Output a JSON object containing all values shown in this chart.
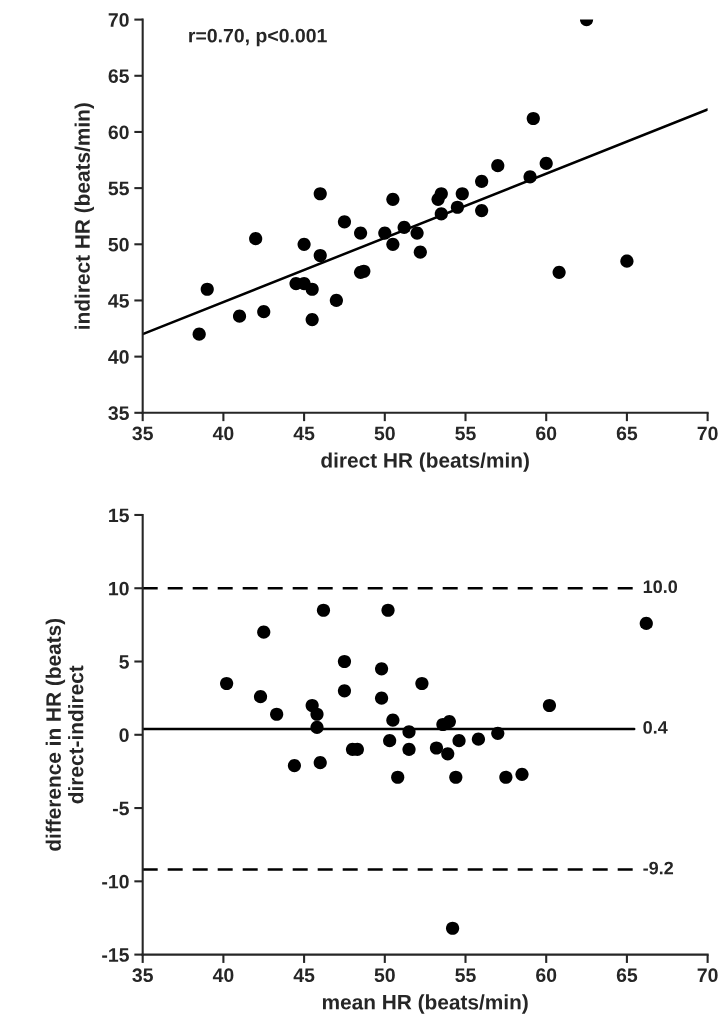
{
  "chart_data": [
    {
      "type": "scatter",
      "xlabel": "direct HR (beats/min)",
      "ylabel": "indirect HR (beats/min)",
      "xlim": [
        35,
        70
      ],
      "ylim": [
        35,
        70
      ],
      "xticks": [
        35,
        40,
        45,
        50,
        55,
        60,
        65,
        70
      ],
      "yticks": [
        35,
        40,
        45,
        50,
        55,
        60,
        65,
        70
      ],
      "grid": false,
      "legend": false,
      "annotations": [
        "r=0.70, p<0.001"
      ],
      "series": [
        {
          "marker": "circle",
          "color": "#000000",
          "x": [
            38.5,
            39,
            41,
            42,
            42.5,
            44.5,
            45,
            45,
            45.5,
            45.5,
            46,
            46,
            47,
            47.5,
            48.5,
            48.5,
            48.7,
            50,
            50.5,
            50.5,
            51.2,
            52,
            52.2,
            53.3,
            53.5,
            53.5,
            54.5,
            54.8,
            56,
            56,
            57,
            59,
            59.2,
            60,
            60.8,
            62.5,
            65
          ],
          "values": [
            42,
            46,
            43.6,
            50.5,
            44,
            46.5,
            50,
            46.5,
            43.3,
            46,
            49,
            54.5,
            45,
            52,
            51,
            47.5,
            47.6,
            51,
            50,
            54,
            51.5,
            51,
            49.3,
            54,
            52.7,
            54.5,
            53.3,
            54.5,
            55.6,
            53,
            57,
            56,
            61.2,
            57.2,
            47.5,
            70,
            48.5
          ]
        },
        {
          "type": "line",
          "marker": "none",
          "color": "#000000",
          "x": [
            35,
            70
          ],
          "values": [
            42,
            62
          ]
        }
      ]
    },
    {
      "type": "scatter",
      "xlabel": "mean HR (beats/min)",
      "ylabel": "difference in HR (beats)\ndirect-indirect",
      "xlim": [
        35,
        70
      ],
      "ylim": [
        -15,
        15
      ],
      "xticks": [
        35,
        40,
        45,
        50,
        55,
        60,
        65,
        70
      ],
      "yticks": [
        -15,
        -10,
        -5,
        0,
        5,
        10,
        15
      ],
      "grid": false,
      "legend": false,
      "ref_lines": [
        {
          "axis": "y",
          "value": 10.0,
          "label": "10.0",
          "line_style": "dashed",
          "color": "#000000"
        },
        {
          "axis": "y",
          "value": 0.4,
          "label": "0.4",
          "line_style": "solid",
          "color": "#000000"
        },
        {
          "axis": "y",
          "value": -9.2,
          "label": "-9.2",
          "line_style": "dashed",
          "color": "#000000"
        }
      ],
      "series": [
        {
          "marker": "circle",
          "color": "#000000",
          "x": [
            40.2,
            42.3,
            42.5,
            43.3,
            44.4,
            45.5,
            45.8,
            45.8,
            46,
            46.2,
            47.5,
            47.5,
            48,
            48.3,
            49.8,
            49.8,
            50.2,
            50.3,
            50.5,
            50.8,
            51.5,
            51.5,
            52.3,
            53.2,
            53.6,
            54,
            53.9,
            54.4,
            54.6,
            55.8,
            57,
            57.5,
            58.5,
            60.2,
            66.2,
            54.2
          ],
          "values": [
            3.5,
            2.6,
            7,
            1.4,
            -2.1,
            2,
            1.4,
            0.5,
            -1.9,
            8.5,
            5,
            3,
            -1,
            -1,
            4.5,
            2.5,
            8.5,
            -0.4,
            1,
            -2.9,
            0.2,
            -1,
            3.5,
            -0.9,
            0.7,
            0.9,
            -1.3,
            -2.9,
            -0.4,
            -0.3,
            0.1,
            -2.9,
            -2.7,
            2,
            7.6,
            -13.2
          ]
        }
      ]
    }
  ]
}
